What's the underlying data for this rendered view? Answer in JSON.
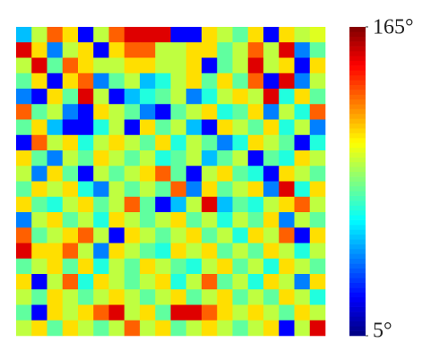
{
  "chart_data": {
    "type": "heatmap",
    "values": [
      [
        55,
        95,
        130,
        110,
        25,
        95,
        130,
        150,
        150,
        150,
        25,
        25,
        110,
        95,
        80,
        110,
        25,
        110,
        95,
        100
      ],
      [
        150,
        110,
        45,
        95,
        110,
        25,
        110,
        130,
        130,
        95,
        95,
        110,
        110,
        80,
        95,
        130,
        95,
        150,
        45,
        80
      ],
      [
        95,
        150,
        80,
        130,
        110,
        95,
        95,
        110,
        110,
        95,
        95,
        110,
        25,
        80,
        95,
        150,
        95,
        110,
        25,
        110
      ],
      [
        80,
        110,
        25,
        110,
        130,
        45,
        80,
        95,
        55,
        70,
        95,
        110,
        80,
        110,
        80,
        130,
        25,
        150,
        45,
        95
      ],
      [
        45,
        25,
        110,
        80,
        150,
        95,
        25,
        55,
        70,
        80,
        95,
        45,
        70,
        95,
        110,
        95,
        150,
        70,
        110,
        80
      ],
      [
        130,
        80,
        95,
        45,
        25,
        110,
        95,
        80,
        45,
        25,
        80,
        95,
        110,
        70,
        80,
        110,
        45,
        95,
        70,
        130
      ],
      [
        80,
        110,
        55,
        25,
        25,
        70,
        95,
        25,
        110,
        80,
        95,
        55,
        25,
        110,
        95,
        80,
        110,
        70,
        95,
        45
      ],
      [
        25,
        130,
        95,
        110,
        70,
        95,
        110,
        95,
        80,
        110,
        70,
        95,
        80,
        45,
        70,
        110,
        95,
        80,
        25,
        70
      ],
      [
        110,
        80,
        45,
        95,
        80,
        110,
        95,
        80,
        95,
        70,
        80,
        95,
        55,
        80,
        95,
        25,
        80,
        70,
        110,
        95
      ],
      [
        95,
        45,
        110,
        80,
        25,
        95,
        80,
        95,
        110,
        130,
        80,
        25,
        95,
        110,
        80,
        70,
        25,
        110,
        95,
        80
      ],
      [
        80,
        110,
        95,
        110,
        70,
        45,
        95,
        80,
        95,
        80,
        130,
        45,
        110,
        80,
        95,
        110,
        45,
        150,
        70,
        110
      ],
      [
        110,
        80,
        70,
        95,
        110,
        80,
        95,
        130,
        80,
        25,
        55,
        95,
        150,
        55,
        80,
        70,
        95,
        110,
        130,
        95
      ],
      [
        45,
        95,
        110,
        80,
        95,
        70,
        110,
        95,
        80,
        95,
        110,
        80,
        95,
        70,
        95,
        80,
        110,
        45,
        95,
        80
      ],
      [
        130,
        80,
        95,
        110,
        130,
        95,
        25,
        110,
        95,
        80,
        95,
        110,
        80,
        95,
        70,
        110,
        95,
        130,
        25,
        110
      ],
      [
        150,
        110,
        110,
        130,
        95,
        45,
        110,
        95,
        80,
        70,
        110,
        95,
        110,
        80,
        95,
        80,
        110,
        95,
        70,
        95
      ],
      [
        80,
        95,
        110,
        80,
        110,
        70,
        95,
        80,
        110,
        95,
        80,
        70,
        95,
        110,
        80,
        95,
        70,
        110,
        95,
        80
      ],
      [
        110,
        25,
        95,
        130,
        70,
        110,
        95,
        80,
        95,
        110,
        70,
        95,
        130,
        80,
        95,
        70,
        110,
        95,
        45,
        110
      ],
      [
        95,
        80,
        110,
        95,
        80,
        95,
        110,
        95,
        80,
        95,
        110,
        80,
        95,
        110,
        80,
        95,
        80,
        110,
        95,
        70
      ],
      [
        80,
        25,
        110,
        95,
        110,
        130,
        150,
        95,
        110,
        80,
        150,
        150,
        130,
        110,
        95,
        110,
        95,
        80,
        110,
        95
      ],
      [
        95,
        110,
        80,
        110,
        95,
        80,
        95,
        130,
        95,
        110,
        80,
        95,
        110,
        95,
        80,
        95,
        110,
        25,
        95,
        150
      ]
    ],
    "clim": [
      5,
      165
    ],
    "colorbar_ticks": [
      {
        "value": 165,
        "label": "165°"
      },
      {
        "value": 5,
        "label": "5°"
      }
    ]
  }
}
